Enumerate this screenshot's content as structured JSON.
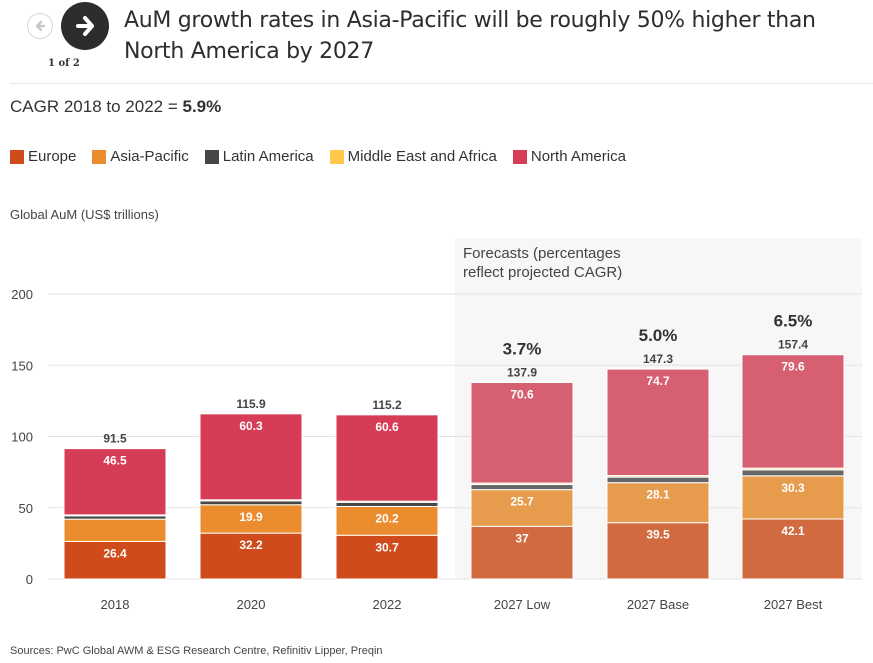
{
  "header": {
    "title": "AuM growth rates in Asia-Pacific will be roughly 50% higher than North America by 2027",
    "pager": "1 of 2",
    "prev_icon": "arrow-left-icon",
    "next_icon": "arrow-right-icon"
  },
  "subtitle": {
    "prefix": "CAGR 2018 to 2022 = ",
    "value": "5.9%"
  },
  "ylabel_text": "Global AuM (US$ trillions)",
  "source": "Sources: PwC Global AWM & ESG Research Centre, Refinitiv Lipper, Preqin",
  "legend": [
    {
      "label": "Europe",
      "color": "#cf4b1b"
    },
    {
      "label": "Asia-Pacific",
      "color": "#eb8c2e"
    },
    {
      "label": "Latin America",
      "color": "#464646"
    },
    {
      "label": "Middle East and Africa",
      "color": "#ffc84b"
    },
    {
      "label": "North America",
      "color": "#d73c56"
    }
  ],
  "chart_data": {
    "type": "bar",
    "stacked": true,
    "title": "AuM growth rates in Asia-Pacific will be roughly 50% higher than North America by 2027",
    "xlabel": "",
    "ylabel": "Global AuM (US$ trillions)",
    "ylim": [
      0,
      200
    ],
    "yticks": [
      0,
      50,
      100,
      150,
      200
    ],
    "grid": true,
    "legend_position": "top-left",
    "categories": [
      "2018",
      "2020",
      "2022",
      "2027 Low",
      "2027 Base",
      "2027 Best"
    ],
    "forecast_categories": [
      "2027 Low",
      "2027 Base",
      "2027 Best"
    ],
    "forecast_note": [
      "Forecasts (percentages",
      "reflect projected CAGR)"
    ],
    "totals": [
      91.5,
      115.9,
      115.2,
      137.9,
      147.3,
      157.4
    ],
    "cagr_labels": [
      null,
      null,
      null,
      "3.7%",
      "5.0%",
      "6.5%"
    ],
    "series": [
      {
        "name": "Europe",
        "color": "#cf4b1b",
        "forecast_color": "#d26a3f",
        "values": [
          26.4,
          32.2,
          30.7,
          37,
          39.5,
          42.1
        ],
        "labels": [
          "26.4",
          "32.2",
          "30.7",
          "37",
          "39.5",
          "42.1"
        ]
      },
      {
        "name": "Asia-Pacific",
        "color": "#eb8c2e",
        "forecast_color": "#e69c4c",
        "values": [
          15.6,
          19.9,
          20.2,
          25.7,
          28.1,
          30.3
        ],
        "labels": [
          null,
          "19.9",
          "20.2",
          "25.7",
          "28.1",
          "30.3"
        ]
      },
      {
        "name": "Latin America",
        "color": "#464646",
        "forecast_color": "#666666",
        "values": [
          2.3,
          2.7,
          2.9,
          3.6,
          3.9,
          4.2
        ],
        "labels": [
          null,
          null,
          null,
          null,
          null,
          null
        ]
      },
      {
        "name": "Middle East and Africa",
        "color": "#ffc84b",
        "forecast_color": "#fbd98a",
        "values": [
          0.7,
          0.8,
          0.8,
          1.0,
          1.1,
          1.2
        ],
        "labels": [
          null,
          null,
          null,
          null,
          null,
          null
        ]
      },
      {
        "name": "North America",
        "color": "#d73c56",
        "forecast_color": "#d75f72",
        "values": [
          46.5,
          60.3,
          60.6,
          70.6,
          74.7,
          79.6
        ],
        "labels": [
          "46.5",
          "60.3",
          "60.6",
          "70.6",
          "74.7",
          "79.6"
        ]
      }
    ]
  }
}
